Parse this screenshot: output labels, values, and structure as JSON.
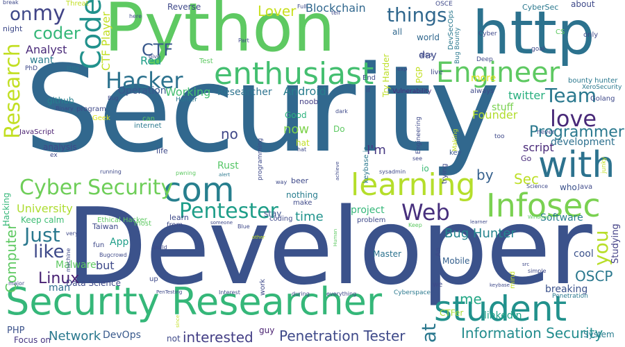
{
  "words": [
    {
      "text": "Security",
      "color": "#31688e"
    },
    {
      "text": "Developer",
      "color": "#3b528b"
    },
    {
      "text": "Python",
      "color": "#5ec962"
    },
    {
      "text": "http",
      "color": "#2c728e"
    },
    {
      "text": "Security Researcher",
      "color": "#35b779"
    },
    {
      "text": "student",
      "color": "#21918c"
    },
    {
      "text": "with",
      "color": "#2c728e"
    },
    {
      "text": "enthusiast",
      "color": "#44bf70"
    },
    {
      "text": "com",
      "color": "#277f8e"
    },
    {
      "text": "learning",
      "color": "#b5de2b"
    },
    {
      "text": "Engineer",
      "color": "#5ec962"
    },
    {
      "text": "Infosec",
      "color": "#7ad151"
    },
    {
      "text": "Cyber Security",
      "color": "#6ece58"
    },
    {
      "text": "Code",
      "color": "#21918c"
    },
    {
      "text": "Hacker",
      "color": "#2c728e"
    },
    {
      "text": "Pentester",
      "color": "#1f9e89"
    },
    {
      "text": "Web",
      "color": "#472f7d"
    },
    {
      "text": "love",
      "color": "#482878"
    },
    {
      "text": "Team",
      "color": "#2a788e"
    },
    {
      "text": "Research",
      "color": "#c2df23"
    },
    {
      "text": "things",
      "color": "#31688e"
    },
    {
      "text": "my",
      "color": "#414487"
    },
    {
      "text": "coder",
      "color": "#35b779"
    },
    {
      "text": "CTF",
      "color": "#38588c"
    },
    {
      "text": "Just",
      "color": "#2a788e"
    },
    {
      "text": "like",
      "color": "#3e4989"
    },
    {
      "text": "Programmer",
      "color": "#2a788e"
    },
    {
      "text": "you",
      "color": "#b8de29"
    },
    {
      "text": "Information Security",
      "color": "#228c8d"
    },
    {
      "text": "Penetration Tester",
      "color": "#3e4989"
    },
    {
      "text": "interested",
      "color": "#433e85"
    },
    {
      "text": "Computer",
      "color": "#5ec962"
    },
    {
      "text": "Network",
      "color": "#2a788e"
    },
    {
      "text": "Bug Hunter",
      "color": "#25848e"
    },
    {
      "text": "OSCP",
      "color": "#2a788e"
    },
    {
      "text": "Linux",
      "color": "#482173"
    },
    {
      "text": "at",
      "color": "#2a788e"
    },
    {
      "text": "me",
      "color": "#22a785"
    },
    {
      "text": "Sec",
      "color": "#bddf26"
    },
    {
      "text": "on",
      "color": "#3e4989"
    },
    {
      "text": "Blockchain",
      "color": "#31688e"
    },
    {
      "text": "Lover",
      "color": "#c8e020"
    },
    {
      "text": "Analyst",
      "color": "#482878"
    },
    {
      "text": "want",
      "color": "#287c8e"
    },
    {
      "text": "Red",
      "color": "#1f9e89"
    },
    {
      "text": "Working",
      "color": "#44bf70"
    },
    {
      "text": "Researcher",
      "color": "#2c728e"
    },
    {
      "text": "Android",
      "color": "#287d8e"
    },
    {
      "text": "Operation",
      "color": "#39568c"
    },
    {
      "text": "Founder",
      "color": "#b2dd2d"
    },
    {
      "text": "stuff",
      "color": "#7ad151"
    },
    {
      "text": "more",
      "color": "#dde318"
    },
    {
      "text": "twitter",
      "color": "#29af7f"
    },
    {
      "text": "no",
      "color": "#3f4788"
    },
    {
      "text": "now",
      "color": "#7fd34e"
    },
    {
      "text": "I'm",
      "color": "#453781"
    },
    {
      "text": "by",
      "color": "#35608d"
    },
    {
      "text": "script",
      "color": "#482878"
    },
    {
      "text": "development",
      "color": "#2d708e"
    },
    {
      "text": "Rust",
      "color": "#56c667"
    },
    {
      "text": "University",
      "color": "#addc30"
    },
    {
      "text": "time",
      "color": "#20938c"
    },
    {
      "text": "project",
      "color": "#35b779"
    },
    {
      "text": "Software",
      "color": "#287c8e"
    },
    {
      "text": "cool",
      "color": "#3b528b"
    },
    {
      "text": "Studying",
      "color": "#424086"
    },
    {
      "text": "App",
      "color": "#1f9e89"
    },
    {
      "text": "Malware",
      "color": "#5ec962"
    },
    {
      "text": "but",
      "color": "#3e4989"
    },
    {
      "text": "man",
      "color": "#2f6c8e"
    },
    {
      "text": "Data Science",
      "color": "#3e4989"
    },
    {
      "text": "Master",
      "color": "#2c728e"
    },
    {
      "text": "Mobile",
      "color": "#35608d"
    },
    {
      "text": "linkedin",
      "color": "#1fa187"
    },
    {
      "text": "breaking",
      "color": "#3b528b"
    },
    {
      "text": "DevOps",
      "color": "#38598c"
    },
    {
      "text": "PHP",
      "color": "#3b528b"
    },
    {
      "text": "Focus on",
      "color": "#453581"
    },
    {
      "text": "CTFer",
      "color": "#a8db34"
    },
    {
      "text": "guy",
      "color": "#481f70"
    },
    {
      "text": "System",
      "color": "#287c8e"
    },
    {
      "text": "Keep calm",
      "color": "#3dbc74"
    },
    {
      "text": "Hacking",
      "color": "#35b779"
    },
    {
      "text": "analysis",
      "color": "#3e4989"
    },
    {
      "text": "github",
      "color": "#26818e"
    },
    {
      "text": "JavaScript",
      "color": "#481d6f"
    },
    {
      "text": "nothing",
      "color": "#287d8e"
    },
    {
      "text": "stay",
      "color": "#3b528b"
    },
    {
      "text": "Do",
      "color": "#5ec962"
    },
    {
      "text": "hat",
      "color": "#c0df25"
    },
    {
      "text": "Good",
      "color": "#2db27d"
    },
    {
      "text": "noob",
      "color": "#433e85"
    },
    {
      "text": "day",
      "color": "#3e4989"
    },
    {
      "text": "world",
      "color": "#31688e"
    },
    {
      "text": "all",
      "color": "#31688e"
    },
    {
      "text": "io",
      "color": "#3aba76"
    },
    {
      "text": "Java",
      "color": "#3e4989"
    },
    {
      "text": "who",
      "color": "#3b528b"
    },
    {
      "text": "Go",
      "color": "#472c7a"
    },
    {
      "text": "key",
      "color": "#39568c"
    },
    {
      "text": "live",
      "color": "#3e4989"
    },
    {
      "text": "always",
      "color": "#3e4989"
    },
    {
      "text": "Golang",
      "color": "#3e4989"
    },
    {
      "text": "CS",
      "color": "#5ec962"
    },
    {
      "text": "only",
      "color": "#3e4989"
    },
    {
      "text": "goal",
      "color": "#3e4989"
    },
    {
      "text": "about",
      "color": "#3e4989"
    },
    {
      "text": "CyberSec",
      "color": "#2a788e"
    },
    {
      "text": "DevSecOps",
      "color": "#2a788e"
    },
    {
      "text": "Bug Bounty",
      "color": "#2a788e"
    },
    {
      "text": "Cyber",
      "color": "#3e4989"
    },
    {
      "text": "Deep",
      "color": "#3e4989"
    },
    {
      "text": "XeroSecurity",
      "color": "#2a788e"
    },
    {
      "text": "bounty hunter",
      "color": "#2a788e"
    },
    {
      "text": "Try Harder",
      "color": "#bddf26"
    },
    {
      "text": "PGP",
      "color": "#c2df23"
    },
    {
      "text": "if",
      "color": "#3e4989"
    },
    {
      "text": "End",
      "color": "#3e4989"
    },
    {
      "text": "exp",
      "color": "#3e4989"
    },
    {
      "text": "Vulnerability",
      "color": "#482878"
    },
    {
      "text": "OSCE",
      "color": "#3e4989"
    },
    {
      "text": "Full",
      "color": "#3e4989"
    },
    {
      "text": "tell",
      "color": "#3e4989"
    },
    {
      "text": "also",
      "color": "#3e4989"
    },
    {
      "text": "CTF Player",
      "color": "#c2df23"
    },
    {
      "text": "Threat",
      "color": "#c2df23"
    },
    {
      "text": "here",
      "color": "#3e4989"
    },
    {
      "text": "Reverse",
      "color": "#3e4989"
    },
    {
      "text": "give",
      "color": "#3e4989"
    },
    {
      "text": "Part",
      "color": "#3e4989"
    },
    {
      "text": "Test",
      "color": "#5ec962"
    },
    {
      "text": "night",
      "color": "#3e4989"
    },
    {
      "text": "PhD",
      "color": "#3e4989"
    },
    {
      "text": "little",
      "color": "#2a788e"
    },
    {
      "text": "Bug",
      "color": "#3e4989"
    },
    {
      "text": "Hunter",
      "color": "#2a788e"
    },
    {
      "text": "Binary",
      "color": "#3e4989"
    },
    {
      "text": "program",
      "color": "#3e4989"
    },
    {
      "text": "Geek",
      "color": "#dde318"
    },
    {
      "text": "can",
      "color": "#5ec962"
    },
    {
      "text": "internet",
      "color": "#2a788e"
    },
    {
      "text": "life",
      "color": "#3e4989"
    },
    {
      "text": "ex",
      "color": "#3e4989"
    },
    {
      "text": "running",
      "color": "#3e4989"
    },
    {
      "text": "alert",
      "color": "#2a788e"
    },
    {
      "text": "pwning",
      "color": "#5ec962"
    },
    {
      "text": "Ethical Hacker",
      "color": "#5ec962"
    },
    {
      "text": "most",
      "color": "#5ec962"
    },
    {
      "text": "keybase io",
      "color": "#2a788e"
    },
    {
      "text": "Engineering",
      "color": "#3e4989"
    },
    {
      "text": "achieve",
      "color": "#3e4989"
    },
    {
      "text": "programming",
      "color": "#3e4989"
    },
    {
      "text": "sysadmin",
      "color": "#3e4989"
    },
    {
      "text": "see",
      "color": "#3e4989"
    },
    {
      "text": "trying",
      "color": "#3e4989"
    },
    {
      "text": "Making",
      "color": "#c2df23"
    },
    {
      "text": "junky",
      "color": "#c2df23"
    },
    {
      "text": "too",
      "color": "#3e4989"
    },
    {
      "text": "never",
      "color": "#3e4989"
    },
    {
      "text": "Science",
      "color": "#3e4989"
    },
    {
      "text": "dark",
      "color": "#3e4989"
    },
    {
      "text": "way",
      "color": "#3e4989"
    },
    {
      "text": "beer",
      "color": "#3e4989"
    },
    {
      "text": "make",
      "color": "#3e4989"
    },
    {
      "text": "learn",
      "color": "#3e4989"
    },
    {
      "text": "from",
      "color": "#3e4989"
    },
    {
      "text": "someone",
      "color": "#3e4989"
    },
    {
      "text": "Blue",
      "color": "#3e4989"
    },
    {
      "text": "coding",
      "color": "#3e4989"
    },
    {
      "text": "problem",
      "color": "#3e4989"
    },
    {
      "text": "Keep",
      "color": "#5ec962"
    },
    {
      "text": "learner",
      "color": "#3e4989"
    },
    {
      "text": "Windows",
      "color": "#5ec962"
    },
    {
      "text": "Taiwan",
      "color": "#3e4989"
    },
    {
      "text": "very",
      "color": "#3e4989"
    },
    {
      "text": "fun",
      "color": "#3e4989"
    },
    {
      "text": "build",
      "color": "#3e4989"
    },
    {
      "text": "other",
      "color": "#c2df23"
    },
    {
      "text": "Human",
      "color": "#5ec962"
    },
    {
      "text": "An",
      "color": "#3e4989"
    },
    {
      "text": "machine",
      "color": "#3e4989"
    },
    {
      "text": "Bugcrowd",
      "color": "#3e4989"
    },
    {
      "text": "src",
      "color": "#3e4989"
    },
    {
      "text": "simple",
      "color": "#3e4989"
    },
    {
      "text": "mind",
      "color": "#c2df23"
    },
    {
      "text": "up",
      "color": "#3e4989"
    },
    {
      "text": "major",
      "color": "#3e4989"
    },
    {
      "text": "work",
      "color": "#3e4989"
    },
    {
      "text": "we",
      "color": "#3e4989"
    },
    {
      "text": "keybase",
      "color": "#3e4989"
    },
    {
      "text": "Penetration",
      "color": "#2a788e"
    },
    {
      "text": "Cyberspace",
      "color": "#2a788e"
    },
    {
      "text": "PenTesting",
      "color": "#3e4989"
    },
    {
      "text": "Interest",
      "color": "#3e4989"
    },
    {
      "text": "during",
      "color": "#3e4989"
    },
    {
      "text": "everything",
      "color": "#3e4989"
    },
    {
      "text": "since",
      "color": "#c2df23"
    },
    {
      "text": "not",
      "color": "#3e4989"
    },
    {
      "text": "break",
      "color": "#3e4989"
    },
    {
      "text": "hat",
      "color": "#3e4989"
    }
  ]
}
